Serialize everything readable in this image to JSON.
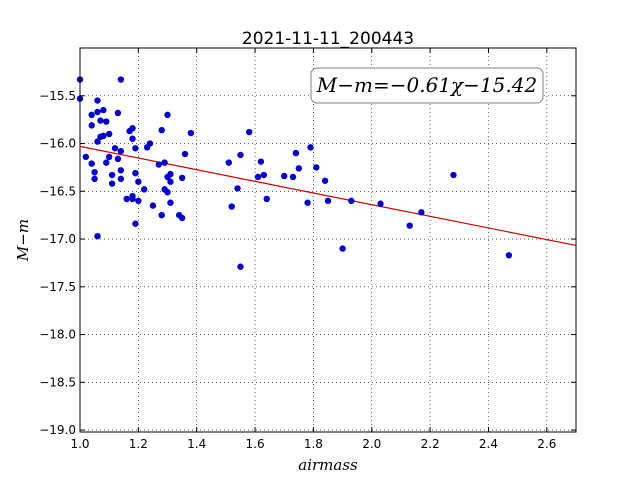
{
  "chart_data": {
    "type": "scatter",
    "title": "2021-11-11_200443",
    "xlabel": "airmass",
    "ylabel": "M−m",
    "xlim": [
      1.0,
      2.7
    ],
    "ylim": [
      -19.02,
      -15.0
    ],
    "y_inverted": true,
    "grid": true,
    "x_ticks": [
      "1.0",
      "1.2",
      "1.4",
      "1.6",
      "1.8",
      "2.0",
      "2.2",
      "2.4",
      "2.6"
    ],
    "x_tick_values": [
      1.0,
      1.2,
      1.4,
      1.6,
      1.8,
      2.0,
      2.2,
      2.4,
      2.6
    ],
    "y_ticks": [
      "−15.5",
      "−16.0",
      "−16.5",
      "−17.0",
      "−17.5",
      "−18.0",
      "−18.5",
      "−19.0"
    ],
    "y_tick_values": [
      -15.5,
      -16.0,
      -16.5,
      -17.0,
      -17.5,
      -18.0,
      -18.5,
      -19.0
    ],
    "annotation": "M−m=−0.61χ−15.42",
    "fit": {
      "slope": -0.61,
      "intercept": -15.42,
      "color": "#cc0000"
    },
    "marker_color": "#0000cc",
    "points": [
      [
        1.0,
        -15.33
      ],
      [
        1.0,
        -15.53
      ],
      [
        1.02,
        -16.14
      ],
      [
        1.04,
        -15.7
      ],
      [
        1.04,
        -15.81
      ],
      [
        1.04,
        -16.21
      ],
      [
        1.05,
        -16.37
      ],
      [
        1.05,
        -16.3
      ],
      [
        1.06,
        -15.55
      ],
      [
        1.06,
        -15.67
      ],
      [
        1.06,
        -15.98
      ],
      [
        1.06,
        -16.97
      ],
      [
        1.07,
        -15.93
      ],
      [
        1.07,
        -15.76
      ],
      [
        1.08,
        -15.65
      ],
      [
        1.08,
        -15.92
      ],
      [
        1.09,
        -15.77
      ],
      [
        1.09,
        -16.2
      ],
      [
        1.1,
        -16.14
      ],
      [
        1.1,
        -15.9
      ],
      [
        1.11,
        -16.42
      ],
      [
        1.11,
        -16.33
      ],
      [
        1.12,
        -16.05
      ],
      [
        1.13,
        -15.68
      ],
      [
        1.13,
        -16.16
      ],
      [
        1.14,
        -16.28
      ],
      [
        1.14,
        -16.37
      ],
      [
        1.14,
        -15.33
      ],
      [
        1.14,
        -16.08
      ],
      [
        1.16,
        -16.58
      ],
      [
        1.17,
        -15.87
      ],
      [
        1.18,
        -16.55
      ],
      [
        1.18,
        -16.58
      ],
      [
        1.18,
        -15.84
      ],
      [
        1.18,
        -15.95
      ],
      [
        1.19,
        -16.05
      ],
      [
        1.19,
        -16.31
      ],
      [
        1.19,
        -16.84
      ],
      [
        1.2,
        -16.4
      ],
      [
        1.2,
        -16.6
      ],
      [
        1.22,
        -16.48
      ],
      [
        1.23,
        -16.04
      ],
      [
        1.24,
        -16.0
      ],
      [
        1.25,
        -16.65
      ],
      [
        1.27,
        -16.22
      ],
      [
        1.28,
        -16.75
      ],
      [
        1.28,
        -15.86
      ],
      [
        1.29,
        -16.48
      ],
      [
        1.29,
        -16.2
      ],
      [
        1.3,
        -16.51
      ],
      [
        1.3,
        -15.7
      ],
      [
        1.3,
        -16.35
      ],
      [
        1.31,
        -16.32
      ],
      [
        1.31,
        -16.4
      ],
      [
        1.31,
        -16.62
      ],
      [
        1.34,
        -16.75
      ],
      [
        1.35,
        -16.36
      ],
      [
        1.35,
        -16.78
      ],
      [
        1.36,
        -16.11
      ],
      [
        1.38,
        -15.89
      ],
      [
        1.51,
        -16.2
      ],
      [
        1.52,
        -16.66
      ],
      [
        1.54,
        -16.47
      ],
      [
        1.55,
        -16.12
      ],
      [
        1.55,
        -17.29
      ],
      [
        1.58,
        -15.88
      ],
      [
        1.61,
        -16.35
      ],
      [
        1.62,
        -16.19
      ],
      [
        1.63,
        -16.33
      ],
      [
        1.64,
        -16.58
      ],
      [
        1.7,
        -16.34
      ],
      [
        1.73,
        -16.35
      ],
      [
        1.74,
        -16.1
      ],
      [
        1.75,
        -16.26
      ],
      [
        1.78,
        -16.62
      ],
      [
        1.79,
        -16.04
      ],
      [
        1.81,
        -16.25
      ],
      [
        1.84,
        -16.39
      ],
      [
        1.85,
        -16.6
      ],
      [
        1.9,
        -17.1
      ],
      [
        1.93,
        -16.6
      ],
      [
        2.03,
        -16.63
      ],
      [
        2.13,
        -16.86
      ],
      [
        2.17,
        -16.72
      ],
      [
        2.28,
        -16.33
      ],
      [
        2.47,
        -17.17
      ]
    ]
  }
}
